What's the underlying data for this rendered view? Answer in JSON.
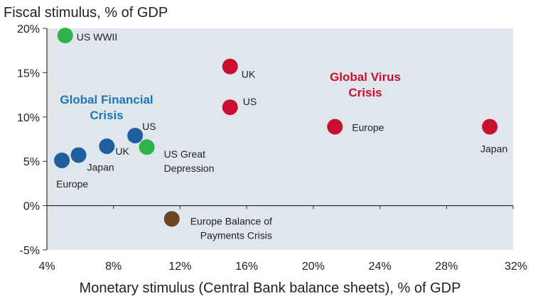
{
  "chart_data": {
    "type": "scatter",
    "title": "",
    "ylabel": "Fiscal stimulus, % of GDP",
    "xlabel": "Monetary stimulus (Central Bank balance sheets), % of GDP",
    "xlim": [
      4,
      32
    ],
    "ylim": [
      -5,
      20
    ],
    "x_ticks": [
      4,
      8,
      12,
      16,
      20,
      24,
      28,
      32
    ],
    "y_ticks": [
      -5,
      0,
      5,
      10,
      15,
      20
    ],
    "x_tick_labels": [
      "4%",
      "8%",
      "12%",
      "16%",
      "20%",
      "24%",
      "28%",
      "32%"
    ],
    "y_tick_labels": [
      "-5%",
      "0%",
      "5%",
      "10%",
      "15%",
      "20%"
    ],
    "grid": false,
    "background": "#dfe6ec",
    "colors": {
      "global_financial_crisis": "#1f5f9e",
      "global_virus_crisis": "#c8102e",
      "historical_green": "#2db34a",
      "historical_brown": "#6b4423"
    },
    "group_labels": [
      {
        "line1": "Global Financial",
        "line2": "Crisis",
        "color": "#1f77b4"
      },
      {
        "line1": "Global Virus",
        "line2": "Crisis",
        "color": "#c8102e"
      }
    ],
    "points": [
      {
        "label": "US WWII",
        "x": 5.1,
        "y": 19.2,
        "color": "#2db34a"
      },
      {
        "label": "UK",
        "x": 15.0,
        "y": 15.7,
        "color": "#c8102e"
      },
      {
        "label": "US",
        "x": 15.0,
        "y": 11.1,
        "color": "#c8102e"
      },
      {
        "label": "Europe",
        "x": 21.3,
        "y": 8.9,
        "color": "#c8102e"
      },
      {
        "label": "Japan",
        "x": 30.6,
        "y": 8.9,
        "color": "#c8102e"
      },
      {
        "label": "US",
        "x": 9.3,
        "y": 7.9,
        "color": "#1f5f9e"
      },
      {
        "label": "UK",
        "x": 7.6,
        "y": 6.7,
        "color": "#1f5f9e"
      },
      {
        "label": "Japan",
        "x": 5.9,
        "y": 5.7,
        "color": "#1f5f9e"
      },
      {
        "label": "Europe",
        "x": 4.9,
        "y": 5.1,
        "color": "#1f5f9e"
      },
      {
        "label": "US Great Depression",
        "x": 10.0,
        "y": 6.6,
        "color": "#2db34a"
      },
      {
        "label": "Europe Balance of Payments Crisis",
        "x": 11.5,
        "y": -1.5,
        "color": "#6b4423"
      }
    ]
  }
}
